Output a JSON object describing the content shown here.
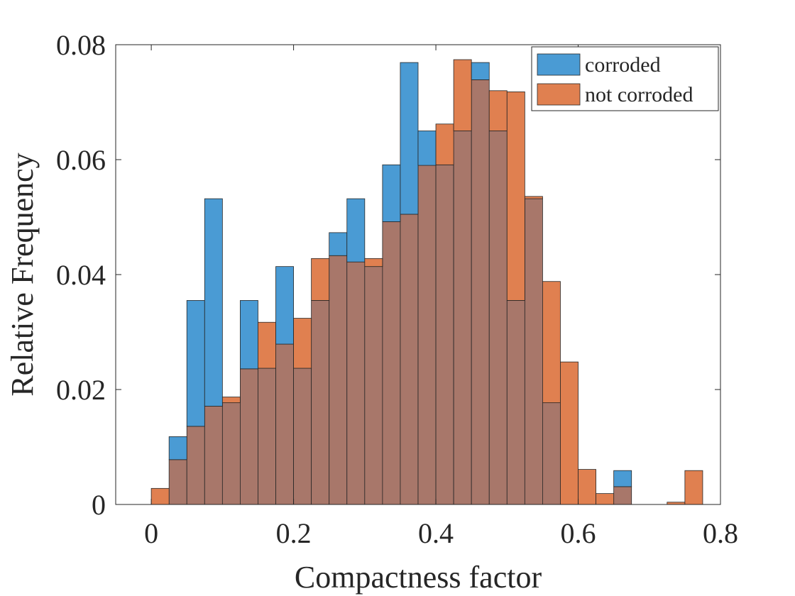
{
  "chart_data": {
    "type": "bar",
    "title": "",
    "xlabel": "Compactness factor",
    "ylabel": "Relative Frequency",
    "xlim": [
      -0.05,
      0.8
    ],
    "ylim": [
      0,
      0.08
    ],
    "xticks": [
      0,
      0.2,
      0.4,
      0.6,
      0.8
    ],
    "xtick_labels": [
      "0",
      "0.2",
      "0.4",
      "0.6",
      "0.8"
    ],
    "yticks": [
      0,
      0.02,
      0.04,
      0.06,
      0.08
    ],
    "ytick_labels": [
      "0",
      "0.02",
      "0.04",
      "0.06",
      "0.08"
    ],
    "bin_width": 0.025,
    "bin_starts": [
      0,
      0.025,
      0.05,
      0.075,
      0.1,
      0.125,
      0.15,
      0.175,
      0.2,
      0.225,
      0.25,
      0.275,
      0.3,
      0.325,
      0.35,
      0.375,
      0.4,
      0.425,
      0.45,
      0.475,
      0.5,
      0.525,
      0.55,
      0.575,
      0.6,
      0.625,
      0.65,
      0.675,
      0.7,
      0.725,
      0.75
    ],
    "series": [
      {
        "name": "corroded",
        "color": "#4a9bd4",
        "values": [
          0,
          0.0118,
          0.0355,
          0.0532,
          0.0177,
          0.0355,
          0.0237,
          0.0414,
          0.0237,
          0.0355,
          0.0473,
          0.0532,
          0.0414,
          0.0591,
          0.0769,
          0.065,
          0.0591,
          0.065,
          0.0769,
          0.065,
          0.0355,
          0.0532,
          0.0177,
          0,
          0,
          0,
          0.0059,
          0,
          0,
          0,
          0
        ]
      },
      {
        "name": "not corroded",
        "color": "#e08050",
        "values": [
          0.0028,
          0.0078,
          0.0136,
          0.0171,
          0.0187,
          0.0236,
          0.0317,
          0.0279,
          0.0324,
          0.0428,
          0.0433,
          0.0422,
          0.0428,
          0.0492,
          0.0505,
          0.059,
          0.0662,
          0.0774,
          0.0739,
          0.072,
          0.0718,
          0.0536,
          0.0388,
          0.0248,
          0.0061,
          0.0019,
          0.0031,
          0,
          0,
          0.0004,
          0.0059
        ]
      }
    ],
    "overlap_color": "#a8776a",
    "legend_position": "top-right",
    "grid": false
  }
}
